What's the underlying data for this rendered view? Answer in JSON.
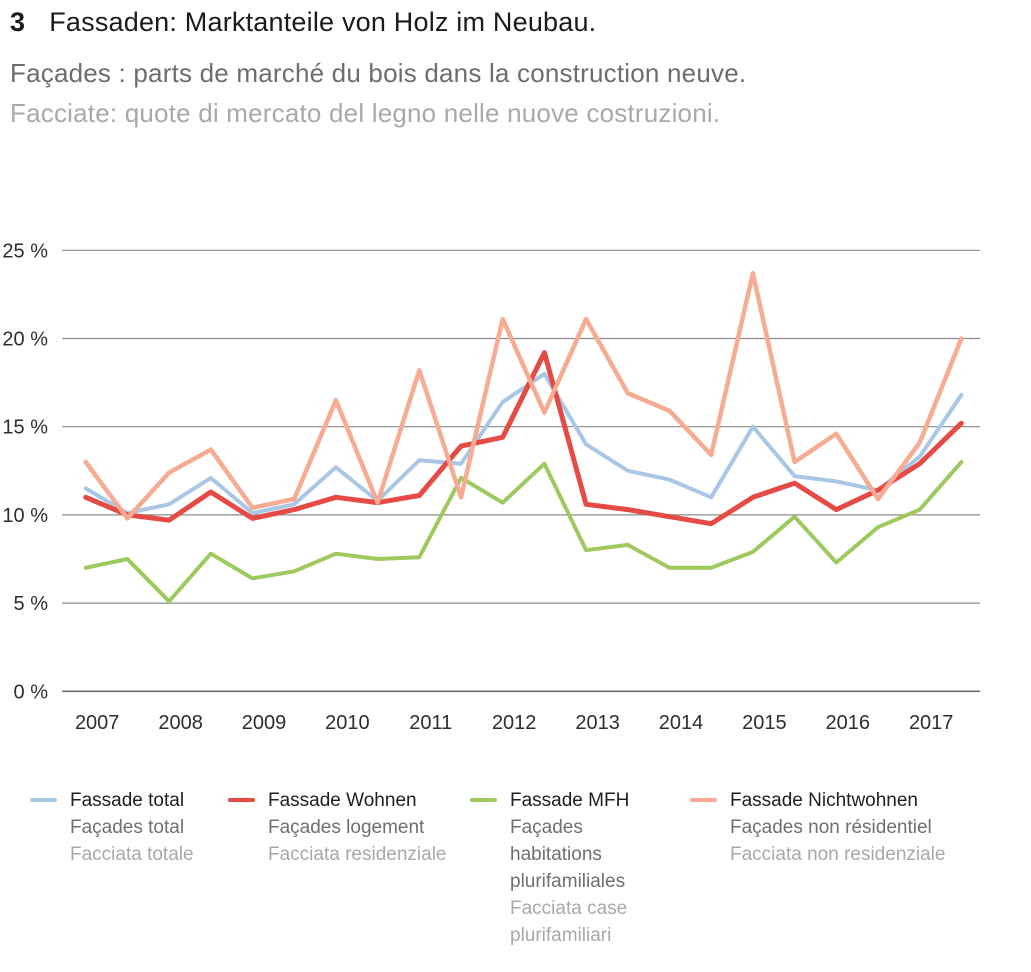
{
  "title": {
    "number": "3",
    "de": "Fassaden: Marktanteile von Holz im Neubau.",
    "fr": "Façades : parts de marché du bois dans la construction neuve.",
    "it": "Facciate: quote di mercato del legno nelle nuove costruzioni."
  },
  "chart_data": {
    "type": "line",
    "x": [
      2007,
      2007.5,
      2008,
      2008.5,
      2009,
      2009.5,
      2010,
      2010.5,
      2011,
      2011.5,
      2012,
      2012.5,
      2013,
      2013.5,
      2014,
      2014.5,
      2015,
      2015.5,
      2016,
      2016.5,
      2017,
      2017.5
    ],
    "x_tick_labels": [
      "2007",
      "2008",
      "2009",
      "2010",
      "2011",
      "2012",
      "2013",
      "2014",
      "2015",
      "2016",
      "2017"
    ],
    "y_ticks": [
      0,
      5,
      10,
      15,
      20,
      25
    ],
    "y_tick_suffix": " %",
    "xlabel": "",
    "ylabel": "",
    "ylim": [
      0,
      26.5
    ],
    "grid": true,
    "legend_position": "bottom",
    "series": [
      {
        "name_de": "Fassade total",
        "name_fr": "Façades total",
        "name_it": "Facciata totale",
        "color": "#a9c7e4",
        "values": [
          11.5,
          10.1,
          10.6,
          12.1,
          10.1,
          10.6,
          12.7,
          10.8,
          13.1,
          12.9,
          16.4,
          18.0,
          14.0,
          12.5,
          12.0,
          11.0,
          15.0,
          12.2,
          11.9,
          11.4,
          13.3,
          16.8
        ]
      },
      {
        "name_de": "Fassade Wohnen",
        "name_fr": "Façades logement",
        "name_it": "Facciata residenziale",
        "color": "#e64a45",
        "values": [
          11.0,
          10.0,
          9.7,
          11.3,
          9.8,
          10.3,
          11.0,
          10.7,
          11.1,
          13.9,
          14.4,
          19.2,
          10.6,
          10.3,
          9.9,
          9.5,
          11.0,
          11.8,
          10.3,
          11.4,
          12.9,
          15.2
        ]
      },
      {
        "name_de": "Fassade MFH",
        "name_fr": "Façades habitations plurifamiliales",
        "name_it": "Facciata case plurifamiliari",
        "color": "#9ec95f",
        "values": [
          7.0,
          7.5,
          5.1,
          7.8,
          6.4,
          6.8,
          7.8,
          7.5,
          7.6,
          12.1,
          10.7,
          12.9,
          8.0,
          8.3,
          7.0,
          7.0,
          7.9,
          9.9,
          7.3,
          9.3,
          10.3,
          13.0
        ]
      },
      {
        "name_de": "Fassade Nichtwohnen",
        "name_fr": "Façades non résidentiel",
        "name_it": "Facciata non residenziale",
        "color": "#f6ab92",
        "values": [
          13.0,
          9.8,
          12.4,
          13.7,
          10.4,
          10.9,
          16.5,
          10.7,
          18.2,
          11.0,
          21.1,
          15.8,
          21.1,
          16.9,
          15.9,
          13.4,
          23.7,
          13.0,
          14.6,
          10.9,
          14.1,
          20.0
        ]
      }
    ]
  }
}
